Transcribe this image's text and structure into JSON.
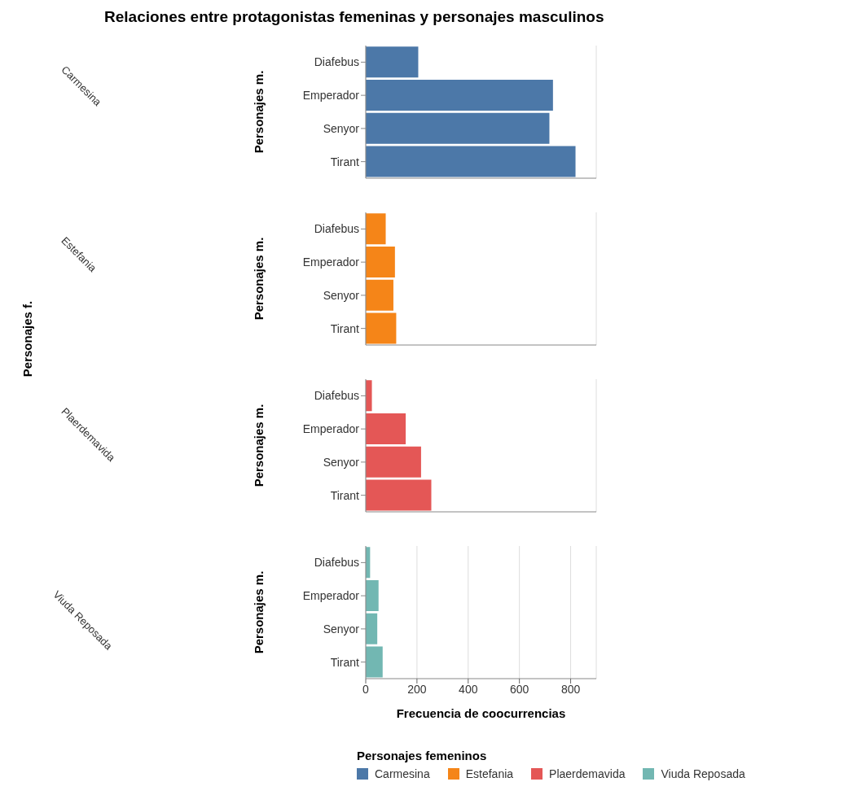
{
  "chart_data": [
    {
      "type": "bar",
      "orientation": "horizontal",
      "title": "Relaciones entre protagonistas femeninas y personajes masculinos",
      "annotations": [
        "Personajes f."
      ],
      "categories": [
        "Diafebus",
        "Emperador",
        "Senyor",
        "Tirant"
      ],
      "series": [
        {
          "name": "Carmesina",
          "color": "#4c78a8",
          "values": [
            205,
            731,
            717,
            819
          ]
        }
      ],
      "xlim": [
        0,
        900
      ],
      "xticks": [
        0,
        200,
        400,
        600,
        800
      ],
      "ylabel": "Personajes m.",
      "grid": "x",
      "tick_labels": "y"
    },
    {
      "type": "bar",
      "orientation": "horizontal",
      "categories": [
        "Diafebus",
        "Emperador",
        "Senyor",
        "Tirant"
      ],
      "series": [
        {
          "name": "Estefania",
          "color": "#f58518",
          "values": [
            78,
            114,
            108,
            119
          ]
        }
      ],
      "xlim": [
        0,
        900
      ],
      "xticks": [
        0,
        200,
        400,
        600,
        800
      ],
      "ylabel": "Personajes m.",
      "grid": "x",
      "tick_labels": "y"
    },
    {
      "type": "bar",
      "orientation": "horizontal",
      "categories": [
        "Diafebus",
        "Emperador",
        "Senyor",
        "Tirant"
      ],
      "series": [
        {
          "name": "Plaerdemavida",
          "color": "#e45756",
          "values": [
            24,
            156,
            216,
            256
          ]
        }
      ],
      "xlim": [
        0,
        900
      ],
      "xticks": [
        0,
        200,
        400,
        600,
        800
      ],
      "ylabel": "Personajes m.",
      "grid": "x",
      "tick_labels": "y"
    },
    {
      "type": "bar",
      "orientation": "horizontal",
      "categories": [
        "Diafebus",
        "Emperador",
        "Senyor",
        "Tirant"
      ],
      "series": [
        {
          "name": "Viuda Reposada",
          "color": "#72b7b2",
          "values": [
            17,
            50,
            45,
            66
          ]
        }
      ],
      "xlim": [
        0,
        900
      ],
      "xticks": [
        0,
        200,
        400,
        600,
        800
      ],
      "ylabel": "Personajes m.",
      "xlabel": "Frecuencia de coocurrencias",
      "grid": "x",
      "legend": "bottom",
      "legend_title": "Personajes femeninos"
    }
  ]
}
